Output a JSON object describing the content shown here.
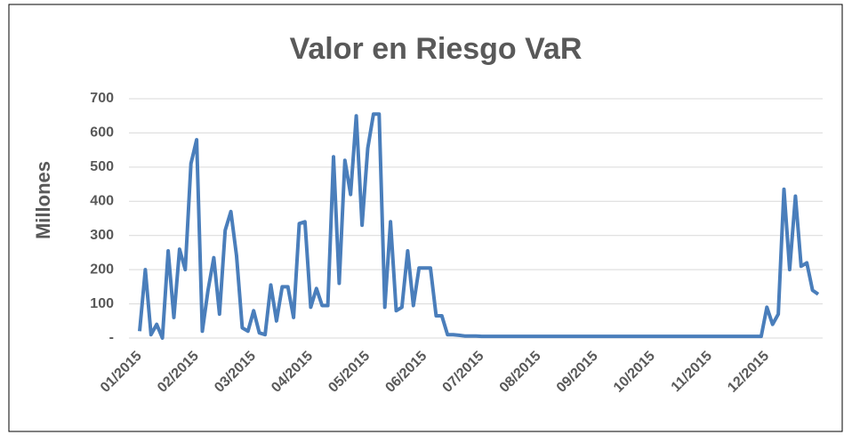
{
  "chart_data": {
    "type": "line",
    "title": "Valor en Riesgo VaR",
    "y_label": "Millones",
    "categories": [
      "01/2015",
      null,
      null,
      null,
      null,
      null,
      null,
      null,
      null,
      null,
      "02/2015",
      null,
      null,
      null,
      null,
      null,
      null,
      null,
      null,
      null,
      "03/2015",
      null,
      null,
      null,
      null,
      null,
      null,
      null,
      null,
      null,
      "04/2015",
      null,
      null,
      null,
      null,
      null,
      null,
      null,
      null,
      null,
      "05/2015",
      null,
      null,
      null,
      null,
      null,
      null,
      null,
      null,
      null,
      "06/2015",
      null,
      null,
      null,
      null,
      null,
      null,
      null,
      null,
      null,
      "07/2015",
      null,
      null,
      null,
      null,
      null,
      null,
      null,
      null,
      null,
      "08/2015",
      null,
      null,
      null,
      null,
      null,
      null,
      null,
      null,
      null,
      "09/2015",
      null,
      null,
      null,
      null,
      null,
      null,
      null,
      null,
      null,
      "10/2015",
      null,
      null,
      null,
      null,
      null,
      null,
      null,
      null,
      null,
      "11/2015",
      null,
      null,
      null,
      null,
      null,
      null,
      null,
      null,
      null,
      "12/2015",
      null,
      null,
      null,
      null,
      null,
      null,
      null,
      null,
      null
    ],
    "series": [
      {
        "name": "VaR",
        "color": "#4a7ebb",
        "values": [
          20,
          200,
          10,
          40,
          0,
          255,
          60,
          260,
          200,
          510,
          580,
          20,
          140,
          235,
          70,
          315,
          370,
          240,
          30,
          20,
          80,
          15,
          10,
          155,
          50,
          150,
          150,
          60,
          335,
          340,
          90,
          145,
          95,
          95,
          530,
          160,
          520,
          420,
          650,
          330,
          555,
          655,
          655,
          90,
          340,
          80,
          90,
          255,
          95,
          205,
          205,
          205,
          65,
          65,
          10,
          10,
          8,
          6,
          6,
          6,
          5,
          5,
          5,
          5,
          5,
          5,
          5,
          5,
          5,
          5,
          5,
          5,
          5,
          5,
          5,
          5,
          5,
          5,
          5,
          5,
          5,
          5,
          5,
          5,
          5,
          5,
          5,
          5,
          5,
          5,
          5,
          5,
          5,
          5,
          5,
          5,
          5,
          5,
          5,
          5,
          5,
          5,
          5,
          5,
          5,
          5,
          5,
          5,
          5,
          5,
          90,
          40,
          70,
          435,
          200,
          415,
          210,
          220,
          140,
          128
        ]
      }
    ],
    "ylim": [
      0,
      700
    ],
    "yticks": [
      {
        "value": 0,
        "label": "-"
      },
      100,
      200,
      300,
      400,
      500,
      600,
      700
    ],
    "grid": true
  }
}
